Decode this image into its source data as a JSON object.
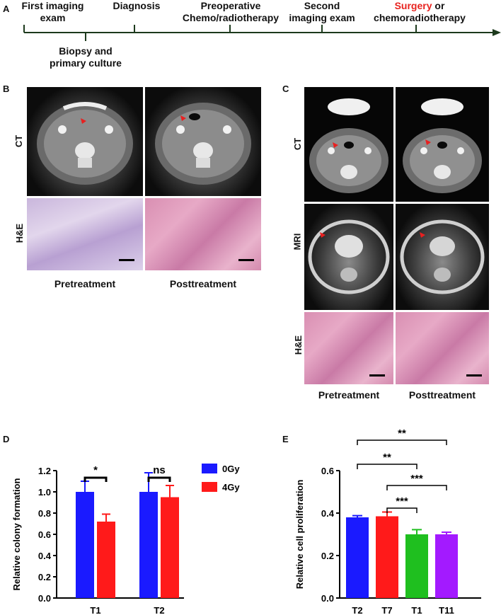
{
  "panels": {
    "a": "A",
    "b": "B",
    "c": "C",
    "d": "D",
    "e": "E"
  },
  "timeline": {
    "top_labels": [
      {
        "line1": "First imaging",
        "line2": "exam"
      },
      {
        "line1": "Diagnosis",
        "line2": ""
      },
      {
        "line1": "Preoperative",
        "line2": "Chemo/radiotherapy"
      },
      {
        "line1": "Second",
        "line2": "imaging exam"
      }
    ],
    "last_label": {
      "highlight": "Surgery",
      "rest": " or",
      "line2": "chemoradiotherapy",
      "highlight_color": "#e8231f"
    },
    "bottom_label": {
      "line1": "Biopsy and",
      "line2": "primary culture"
    }
  },
  "panel_b": {
    "row_labels": [
      "CT",
      "H&E"
    ],
    "captions": [
      "Pretreatment",
      "Posttreatment"
    ]
  },
  "panel_c": {
    "row_labels": [
      "CT",
      "MRI",
      "H&E"
    ],
    "captions": [
      "Pretreatment",
      "Posttreatment"
    ]
  },
  "chart_data": [
    {
      "type": "bar",
      "ylabel": "Relative colony formation",
      "ylim": [
        0.0,
        1.2
      ],
      "yticks": [
        "0.0",
        "0.2",
        "0.4",
        "0.6",
        "0.8",
        "1.0",
        "1.2"
      ],
      "categories": [
        "T1",
        "T2"
      ],
      "series": [
        {
          "name": "0Gy",
          "color": "#1a1aff",
          "values": [
            1.0,
            1.0
          ],
          "errors": [
            0.1,
            0.18
          ]
        },
        {
          "name": "4Gy",
          "color": "#ff1a1a",
          "values": [
            0.72,
            0.95
          ],
          "errors": [
            0.07,
            0.11
          ]
        }
      ],
      "significance": [
        "*",
        "ns"
      ],
      "legend_position": "right"
    },
    {
      "type": "bar",
      "ylabel": "Relative cell proliferation",
      "ylim": [
        0.0,
        0.6
      ],
      "yticks": [
        "0.0",
        "0.2",
        "0.4",
        "0.6"
      ],
      "categories": [
        "T2",
        "T7",
        "T1",
        "T11"
      ],
      "values": [
        0.38,
        0.385,
        0.3,
        0.3
      ],
      "errors": [
        0.008,
        0.02,
        0.022,
        0.01
      ],
      "colors": [
        "#1a1aff",
        "#ff1a1a",
        "#1fbf1f",
        "#a31aff"
      ],
      "significance": [
        {
          "from": "T2",
          "to": "T11",
          "label": "**"
        },
        {
          "from": "T2",
          "to": "T1",
          "label": "**"
        },
        {
          "from": "T7",
          "to": "T11",
          "label": "***"
        },
        {
          "from": "T7",
          "to": "T1",
          "label": "***"
        }
      ]
    }
  ]
}
